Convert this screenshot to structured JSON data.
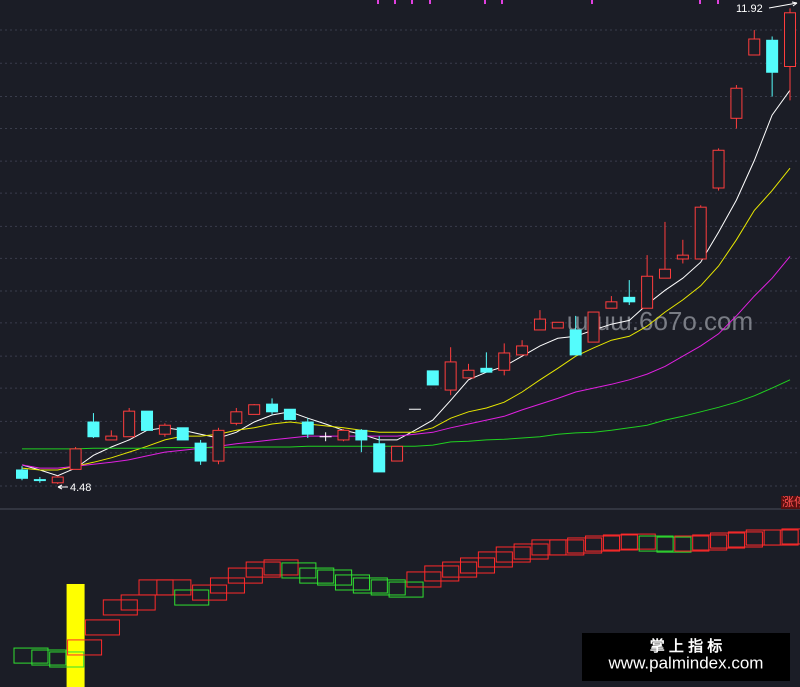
{
  "chart_data": {
    "type": "candlestick",
    "ylim": [
      4.09,
      12.05
    ],
    "ygrid": [
      11.58,
      11.06,
      10.54,
      10.04,
      9.53,
      9.03,
      8.51,
      8.01,
      7.5,
      7.0,
      6.48,
      5.98,
      5.46,
      4.97,
      4.45
    ],
    "up_color": "#ff3d3d",
    "down_color": "#54fcfc",
    "flat_color": "#ffffff",
    "open": [
      4.7,
      4.55,
      4.5,
      4.71,
      5.45,
      5.17,
      5.22,
      5.62,
      5.26,
      5.36,
      5.12,
      4.84,
      5.43,
      5.57,
      5.73,
      5.65,
      5.45,
      5.22,
      5.17,
      5.32,
      5.11,
      4.84,
      5.65,
      6.25,
      5.95,
      6.14,
      6.29,
      6.26,
      6.5,
      6.89,
      6.92,
      6.89,
      6.7,
      7.23,
      7.4,
      7.23,
      7.7,
      8.0,
      8.0,
      9.11,
      10.2,
      11.19,
      11.42,
      11.01
    ],
    "high": [
      4.76,
      4.59,
      4.61,
      5.06,
      5.59,
      5.32,
      5.67,
      5.62,
      5.43,
      5.36,
      5.17,
      5.36,
      5.67,
      5.73,
      5.82,
      5.65,
      5.51,
      5.29,
      5.34,
      5.34,
      5.23,
      5.07,
      5.65,
      6.25,
      6.62,
      6.36,
      6.54,
      6.68,
      6.73,
      7.2,
      7.01,
      7.11,
      7.17,
      7.42,
      7.67,
      8.06,
      8.58,
      8.3,
      8.84,
      9.73,
      10.72,
      11.58,
      11.48,
      11.92
    ],
    "low": [
      4.54,
      4.5,
      4.48,
      4.71,
      5.2,
      5.17,
      5.22,
      5.32,
      5.22,
      5.17,
      4.78,
      4.79,
      5.4,
      5.57,
      5.57,
      5.49,
      5.2,
      5.15,
      5.15,
      4.98,
      4.67,
      4.84,
      5.65,
      6.03,
      5.87,
      6.14,
      6.23,
      6.18,
      6.5,
      6.89,
      6.92,
      6.5,
      6.7,
      7.23,
      7.28,
      7.23,
      7.7,
      7.93,
      8.0,
      9.07,
      10.04,
      11.19,
      10.54,
      10.48
    ],
    "close": [
      4.57,
      4.54,
      4.59,
      5.03,
      5.22,
      5.23,
      5.62,
      5.32,
      5.4,
      5.17,
      4.84,
      5.32,
      5.61,
      5.72,
      5.61,
      5.49,
      5.26,
      5.22,
      5.32,
      5.17,
      4.67,
      5.07,
      5.65,
      6.03,
      6.39,
      6.26,
      6.23,
      6.53,
      6.64,
      7.06,
      7.01,
      6.5,
      7.17,
      7.33,
      7.33,
      7.73,
      7.84,
      8.06,
      8.81,
      9.7,
      10.67,
      11.44,
      10.92,
      11.85
    ],
    "moving_averages": [
      {
        "color": "#ffffff",
        "values": [
          4.78,
          4.7,
          4.61,
          4.73,
          4.93,
          5.06,
          5.17,
          5.32,
          5.36,
          5.32,
          5.26,
          5.2,
          5.29,
          5.45,
          5.56,
          5.61,
          5.51,
          5.42,
          5.32,
          5.26,
          5.17,
          5.17,
          5.32,
          5.48,
          5.79,
          6.11,
          6.23,
          6.32,
          6.48,
          6.64,
          6.76,
          6.79,
          6.89,
          6.98,
          7.04,
          7.29,
          7.51,
          7.7,
          7.95,
          8.42,
          8.92,
          9.54,
          10.25,
          10.64
        ]
      },
      {
        "color": "#e8e800",
        "values": [
          4.73,
          4.7,
          4.7,
          4.76,
          4.82,
          4.89,
          4.98,
          5.07,
          5.17,
          5.23,
          5.23,
          5.26,
          5.32,
          5.36,
          5.42,
          5.45,
          5.42,
          5.39,
          5.36,
          5.32,
          5.29,
          5.29,
          5.29,
          5.36,
          5.51,
          5.61,
          5.67,
          5.76,
          5.92,
          6.11,
          6.29,
          6.48,
          6.61,
          6.73,
          6.79,
          6.95,
          7.17,
          7.36,
          7.58,
          7.89,
          8.3,
          8.76,
          9.07,
          9.42
        ]
      },
      {
        "color": "#e020e0",
        "values": [
          4.78,
          4.73,
          4.73,
          4.76,
          4.79,
          4.82,
          4.86,
          4.92,
          4.98,
          5.01,
          5.04,
          5.07,
          5.11,
          5.14,
          5.17,
          5.2,
          5.23,
          5.23,
          5.23,
          5.23,
          5.23,
          5.23,
          5.26,
          5.29,
          5.36,
          5.42,
          5.48,
          5.54,
          5.64,
          5.73,
          5.82,
          5.92,
          5.98,
          6.04,
          6.11,
          6.2,
          6.32,
          6.48,
          6.64,
          6.83,
          7.11,
          7.42,
          7.7,
          8.04
        ]
      },
      {
        "color": "#20d020",
        "values": [
          5.03,
          5.03,
          5.03,
          5.03,
          5.04,
          5.04,
          5.04,
          5.04,
          5.05,
          5.05,
          5.05,
          5.05,
          5.06,
          5.06,
          5.06,
          5.06,
          5.07,
          5.07,
          5.07,
          5.07,
          5.07,
          5.07,
          5.07,
          5.09,
          5.14,
          5.15,
          5.17,
          5.18,
          5.2,
          5.22,
          5.26,
          5.28,
          5.29,
          5.32,
          5.36,
          5.4,
          5.48,
          5.54,
          5.61,
          5.68,
          5.76,
          5.86,
          5.98,
          6.11
        ]
      }
    ],
    "limit_up_label": "涨停",
    "watermark": "ɯɯɯ.6o7o.com",
    "footer_title": "掌 上 指 标",
    "footer_url": "www.palmindex.com",
    "indicator": {
      "type": "step-box",
      "ylim": [
        0,
        100
      ],
      "up_color": "#ff2a2a",
      "down_color": "#30e030",
      "signal_color": "#ffff00",
      "upper": [
        22.0,
        20.9,
        19.8,
        26.6,
        37.9,
        49.2,
        52.0,
        60.5,
        60.5,
        54.8,
        57.6,
        61.6,
        67.2,
        70.6,
        71.8,
        70.1,
        67.2,
        66.1,
        63.3,
        61.6,
        60.5,
        59.3,
        65.0,
        68.4,
        70.6,
        72.9,
        76.3,
        79.1,
        80.8,
        83.1,
        83.1,
        84.2,
        85.3,
        85.9,
        86.4,
        85.3,
        84.7,
        85.3,
        85.9,
        87.0,
        87.6,
        88.7,
        88.7,
        89.3
      ],
      "lower": [
        13.5,
        12.4,
        11.3,
        18.1,
        29.4,
        40.7,
        43.5,
        52.0,
        52.0,
        46.3,
        49.1,
        53.1,
        58.7,
        62.1,
        63.3,
        61.6,
        58.7,
        57.6,
        54.8,
        53.1,
        52.0,
        50.8,
        56.5,
        59.9,
        62.1,
        64.4,
        67.8,
        70.6,
        72.3,
        74.6,
        74.6,
        75.7,
        76.8,
        77.4,
        77.9,
        76.8,
        76.2,
        76.8,
        77.4,
        78.5,
        79.1,
        80.2,
        80.2,
        80.8
      ],
      "signal": [
        null,
        null,
        null,
        58.2,
        null,
        null,
        null,
        null,
        null,
        null,
        null,
        null,
        null,
        null,
        null,
        null,
        null,
        null,
        null,
        null,
        null,
        null,
        null,
        null,
        null,
        null,
        null,
        null,
        null,
        null,
        null,
        null,
        null,
        null,
        null,
        null,
        null,
        null,
        null,
        null,
        null,
        null,
        null,
        null
      ]
    }
  }
}
